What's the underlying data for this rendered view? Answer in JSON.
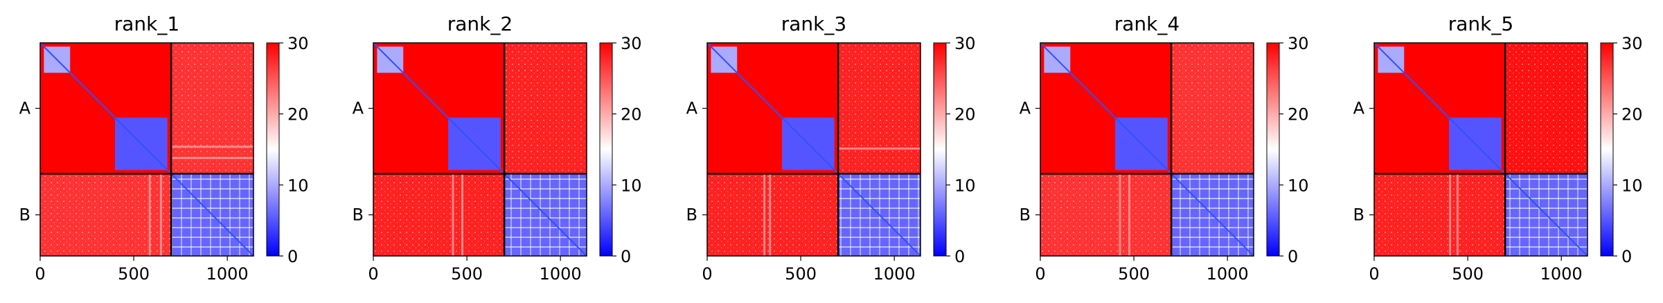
{
  "chart_data": [
    {
      "type": "heatmap",
      "title": "rank_1",
      "xticks": [
        0,
        500,
        1000
      ],
      "xlim": [
        0,
        1140
      ],
      "yticklabels": [
        "A",
        "B"
      ],
      "chain_boundary": 700,
      "colorbar": {
        "ticks": [
          0,
          10,
          20,
          30
        ],
        "range": [
          0,
          30
        ],
        "colors": [
          "#0000ff",
          "#ffffff",
          "#ff0000"
        ]
      },
      "blocks": [
        {
          "name": "A-A",
          "x": [
            0,
            700
          ],
          "y": [
            0,
            700
          ],
          "value": 30
        },
        {
          "name": "A-B",
          "x": [
            700,
            1140
          ],
          "y": [
            0,
            700
          ],
          "value": 27
        },
        {
          "name": "B-A",
          "x": [
            0,
            700
          ],
          "y": [
            700,
            1140
          ],
          "value": 27
        },
        {
          "name": "B-B",
          "x": [
            700,
            1140
          ],
          "y": [
            700,
            1140
          ],
          "value": 6
        },
        {
          "name": "A-domain-1",
          "x": [
            20,
            160
          ],
          "y": [
            20,
            160
          ],
          "value": 10
        },
        {
          "name": "A-domain-2",
          "x": [
            400,
            680
          ],
          "y": [
            400,
            680
          ],
          "value": 5
        }
      ],
      "stripes": {
        "AB": [
          550,
          610
        ],
        "BA": [
          580,
          640
        ]
      }
    },
    {
      "type": "heatmap",
      "title": "rank_2",
      "xticks": [
        0,
        500,
        1000
      ],
      "xlim": [
        0,
        1140
      ],
      "yticklabels": [
        "A",
        "B"
      ],
      "chain_boundary": 700,
      "colorbar": {
        "ticks": [
          0,
          10,
          20,
          30
        ],
        "range": [
          0,
          30
        ],
        "colors": [
          "#0000ff",
          "#ffffff",
          "#ff0000"
        ]
      },
      "blocks": [
        {
          "name": "A-A",
          "x": [
            0,
            700
          ],
          "y": [
            0,
            700
          ],
          "value": 30
        },
        {
          "name": "A-B",
          "x": [
            700,
            1140
          ],
          "y": [
            0,
            700
          ],
          "value": 28
        },
        {
          "name": "B-A",
          "x": [
            0,
            700
          ],
          "y": [
            700,
            1140
          ],
          "value": 28
        },
        {
          "name": "B-B",
          "x": [
            700,
            1140
          ],
          "y": [
            700,
            1140
          ],
          "value": 6
        },
        {
          "name": "A-domain-1",
          "x": [
            20,
            160
          ],
          "y": [
            20,
            160
          ],
          "value": 10
        },
        {
          "name": "A-domain-2",
          "x": [
            400,
            680
          ],
          "y": [
            400,
            680
          ],
          "value": 5
        }
      ],
      "stripes": {
        "AB": [],
        "BA": [
          420,
          470
        ]
      }
    },
    {
      "type": "heatmap",
      "title": "rank_3",
      "xticks": [
        0,
        500,
        1000
      ],
      "xlim": [
        0,
        1140
      ],
      "yticklabels": [
        "A",
        "B"
      ],
      "chain_boundary": 700,
      "colorbar": {
        "ticks": [
          0,
          10,
          20,
          30
        ],
        "range": [
          0,
          30
        ],
        "colors": [
          "#0000ff",
          "#ffffff",
          "#ff0000"
        ]
      },
      "blocks": [
        {
          "name": "A-A",
          "x": [
            0,
            700
          ],
          "y": [
            0,
            700
          ],
          "value": 30
        },
        {
          "name": "A-B",
          "x": [
            700,
            1140
          ],
          "y": [
            0,
            700
          ],
          "value": 28
        },
        {
          "name": "B-A",
          "x": [
            0,
            700
          ],
          "y": [
            700,
            1140
          ],
          "value": 28
        },
        {
          "name": "B-B",
          "x": [
            700,
            1140
          ],
          "y": [
            700,
            1140
          ],
          "value": 6
        },
        {
          "name": "A-domain-1",
          "x": [
            20,
            160
          ],
          "y": [
            20,
            160
          ],
          "value": 10
        },
        {
          "name": "A-domain-2",
          "x": [
            400,
            680
          ],
          "y": [
            400,
            680
          ],
          "value": 5
        }
      ],
      "stripes": {
        "AB": [
          560
        ],
        "BA": [
          300,
          330
        ]
      }
    },
    {
      "type": "heatmap",
      "title": "rank_4",
      "xticks": [
        0,
        500,
        1000
      ],
      "xlim": [
        0,
        1140
      ],
      "yticklabels": [
        "A",
        "B"
      ],
      "chain_boundary": 700,
      "colorbar": {
        "ticks": [
          0,
          10,
          20,
          30
        ],
        "range": [
          0,
          30
        ],
        "colors": [
          "#0000ff",
          "#ffffff",
          "#ff0000"
        ]
      },
      "blocks": [
        {
          "name": "A-A",
          "x": [
            0,
            700
          ],
          "y": [
            0,
            700
          ],
          "value": 30
        },
        {
          "name": "A-B",
          "x": [
            700,
            1140
          ],
          "y": [
            0,
            700
          ],
          "value": 27
        },
        {
          "name": "B-A",
          "x": [
            0,
            700
          ],
          "y": [
            700,
            1140
          ],
          "value": 27
        },
        {
          "name": "B-B",
          "x": [
            700,
            1140
          ],
          "y": [
            700,
            1140
          ],
          "value": 6
        },
        {
          "name": "A-domain-1",
          "x": [
            20,
            160
          ],
          "y": [
            20,
            160
          ],
          "value": 10
        },
        {
          "name": "A-domain-2",
          "x": [
            400,
            680
          ],
          "y": [
            400,
            680
          ],
          "value": 5
        }
      ],
      "stripes": {
        "AB": [],
        "BA": [
          420,
          470
        ]
      }
    },
    {
      "type": "heatmap",
      "title": "rank_5",
      "xticks": [
        0,
        500,
        1000
      ],
      "xlim": [
        0,
        1140
      ],
      "yticklabels": [
        "A",
        "B"
      ],
      "chain_boundary": 700,
      "colorbar": {
        "ticks": [
          0,
          10,
          20,
          30
        ],
        "range": [
          0,
          30
        ],
        "colors": [
          "#0000ff",
          "#ffffff",
          "#ff0000"
        ]
      },
      "blocks": [
        {
          "name": "A-A",
          "x": [
            0,
            700
          ],
          "y": [
            0,
            700
          ],
          "value": 30
        },
        {
          "name": "A-B",
          "x": [
            700,
            1140
          ],
          "y": [
            0,
            700
          ],
          "value": 29
        },
        {
          "name": "B-A",
          "x": [
            0,
            700
          ],
          "y": [
            700,
            1140
          ],
          "value": 28
        },
        {
          "name": "B-B",
          "x": [
            700,
            1140
          ],
          "y": [
            700,
            1140
          ],
          "value": 6
        },
        {
          "name": "A-domain-1",
          "x": [
            20,
            160
          ],
          "y": [
            20,
            160
          ],
          "value": 10
        },
        {
          "name": "A-domain-2",
          "x": [
            400,
            680
          ],
          "y": [
            400,
            680
          ],
          "value": 5
        }
      ],
      "stripes": {
        "AB": [],
        "BA": [
          400,
          440
        ]
      }
    }
  ]
}
